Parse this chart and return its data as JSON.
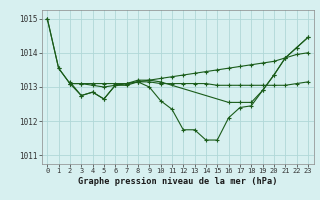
{
  "title": "Graphe pression niveau de la mer (hPa)",
  "background_color": "#d7f0f0",
  "grid_color": "#b0d8d8",
  "line_color": "#1a5c1a",
  "xlim": [
    -0.5,
    23.5
  ],
  "ylim": [
    1010.75,
    1015.25
  ],
  "yticks": [
    1011,
    1012,
    1013,
    1014,
    1015
  ],
  "xticks": [
    0,
    1,
    2,
    3,
    4,
    5,
    6,
    7,
    8,
    9,
    10,
    11,
    12,
    13,
    14,
    15,
    16,
    17,
    18,
    19,
    20,
    21,
    22,
    23
  ],
  "series": [
    {
      "x": [
        0,
        1,
        2,
        3,
        4,
        5,
        6,
        7,
        8,
        9,
        10,
        11,
        12,
        13,
        14,
        15,
        16,
        17,
        18,
        19,
        20,
        21,
        22,
        23
      ],
      "y": [
        1015.0,
        1013.55,
        1013.1,
        1012.75,
        1012.85,
        1012.65,
        1013.05,
        1013.05,
        1013.15,
        1013.0,
        1012.6,
        1012.35,
        1011.75,
        1011.75,
        1011.45,
        1011.45,
        1012.1,
        1012.4,
        1012.45,
        1012.9,
        1013.35,
        1013.85,
        1014.15,
        1014.45
      ]
    },
    {
      "x": [
        0,
        1,
        2,
        3,
        4,
        5,
        6,
        7,
        8,
        9,
        10,
        11,
        12,
        13,
        14,
        15,
        16,
        17,
        18,
        19,
        20,
        21,
        22,
        23
      ],
      "y": [
        1015.0,
        1013.55,
        1013.1,
        1013.1,
        1013.1,
        1013.1,
        1013.1,
        1013.1,
        1013.15,
        1013.2,
        1013.25,
        1013.3,
        1013.35,
        1013.4,
        1013.45,
        1013.5,
        1013.55,
        1013.6,
        1013.65,
        1013.7,
        1013.75,
        1013.85,
        1013.95,
        1014.0
      ]
    },
    {
      "x": [
        2,
        3,
        4,
        5,
        6,
        7,
        8,
        9,
        10,
        11,
        12,
        13,
        14,
        15,
        16,
        17,
        18,
        19,
        20,
        21,
        22,
        23
      ],
      "y": [
        1013.1,
        1013.1,
        1013.05,
        1013.0,
        1013.05,
        1013.1,
        1013.15,
        1013.15,
        1013.1,
        1013.1,
        1013.1,
        1013.1,
        1013.1,
        1013.05,
        1013.05,
        1013.05,
        1013.05,
        1013.05,
        1013.05,
        1013.05,
        1013.1,
        1013.15
      ]
    },
    {
      "x": [
        2,
        3,
        4,
        5,
        6,
        7,
        8,
        9,
        10,
        16,
        17,
        18,
        19,
        20,
        21,
        22,
        23
      ],
      "y": [
        1013.15,
        1012.75,
        1012.85,
        1012.65,
        1013.05,
        1013.1,
        1013.2,
        1013.2,
        1013.15,
        1012.55,
        1012.55,
        1012.55,
        1012.9,
        1013.35,
        1013.85,
        1014.15,
        1014.45
      ]
    }
  ]
}
